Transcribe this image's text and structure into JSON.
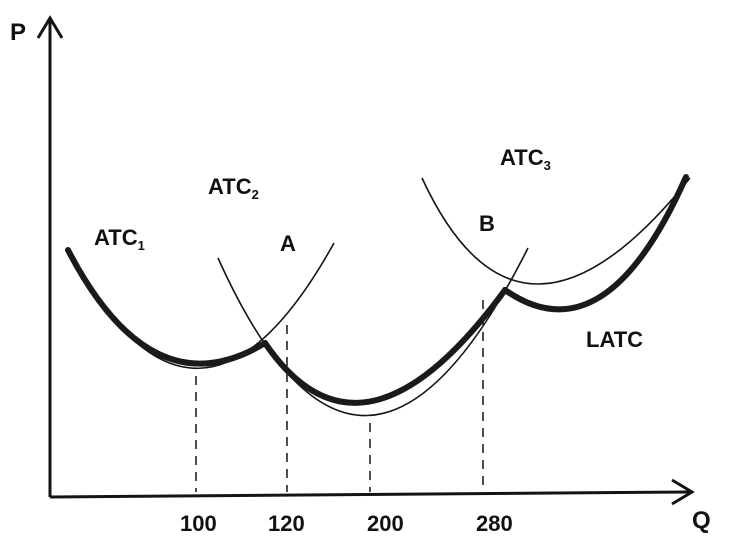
{
  "axes": {
    "y_label": "P",
    "x_label": "Q"
  },
  "curves": {
    "atc1": {
      "name": "ATC",
      "sub": "1"
    },
    "atc2": {
      "name": "ATC",
      "sub": "2"
    },
    "atc3": {
      "name": "ATC",
      "sub": "3"
    },
    "latc": {
      "name": "LATC"
    }
  },
  "points": {
    "a": "A",
    "b": "B"
  },
  "ticks": [
    "100",
    "120",
    "200",
    "280"
  ],
  "colors": {
    "ink": "#151515",
    "background": "#ffffff"
  }
}
